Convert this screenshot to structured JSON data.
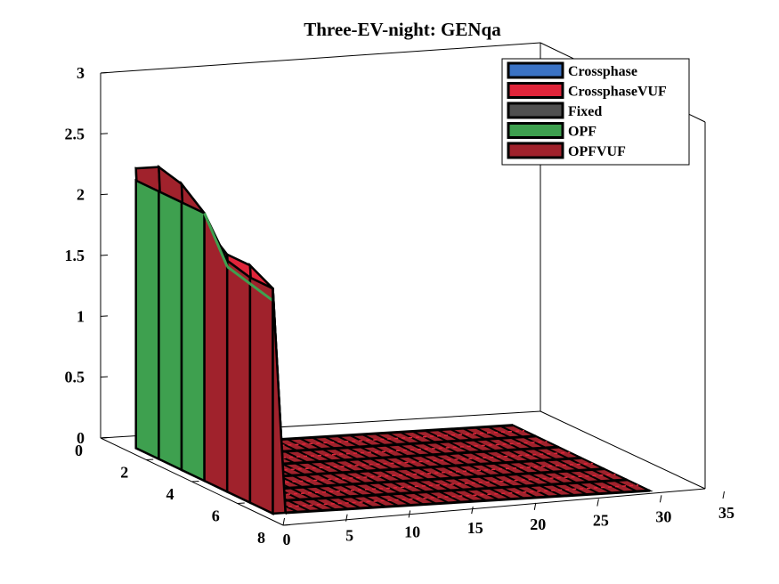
{
  "chart_data": {
    "type": "surface3d",
    "title": "Three-EV-night: GENqa",
    "xlabel": "",
    "ylabel": "",
    "zlabel": "",
    "x_ticks": [
      "0",
      "5",
      "10",
      "15",
      "20",
      "25",
      "30",
      "35"
    ],
    "y_ticks": [
      "0",
      "2",
      "4",
      "6",
      "8"
    ],
    "z_ticks": [
      "0",
      "0.5",
      "1",
      "1.5",
      "2",
      "2.5",
      "3"
    ],
    "xlim": [
      0,
      35
    ],
    "ylim": [
      0,
      8
    ],
    "zlim": [
      0,
      3
    ],
    "legend": [
      "Crossphase",
      "CrossphaseVUF",
      "Fixed",
      "OPF",
      "OPFVUF"
    ],
    "legend_position": "top-right",
    "colors": {
      "Crossphase": "#3a72c4",
      "CrossphaseVUF": "#e0253a",
      "Fixed": "#505050",
      "OPF": "#3ea04f",
      "OPFVUF": "#a0222c"
    },
    "surface_values_at_x1": {
      "y": [
        1,
        2,
        3,
        4,
        5,
        6,
        7
      ],
      "OPFVUF": [
        2.3,
        2.4,
        2.35,
        2.2,
        1.9,
        1.85,
        1.85
      ],
      "OPF": [
        2.2,
        2.2,
        2.2,
        2.2,
        1.85,
        1.8,
        1.75
      ],
      "CrossphaseVUF": [
        2.3,
        2.35,
        2.3,
        2.1,
        1.95,
        1.95,
        1.85
      ]
    },
    "surface_values_x2_to_31": 0
  }
}
